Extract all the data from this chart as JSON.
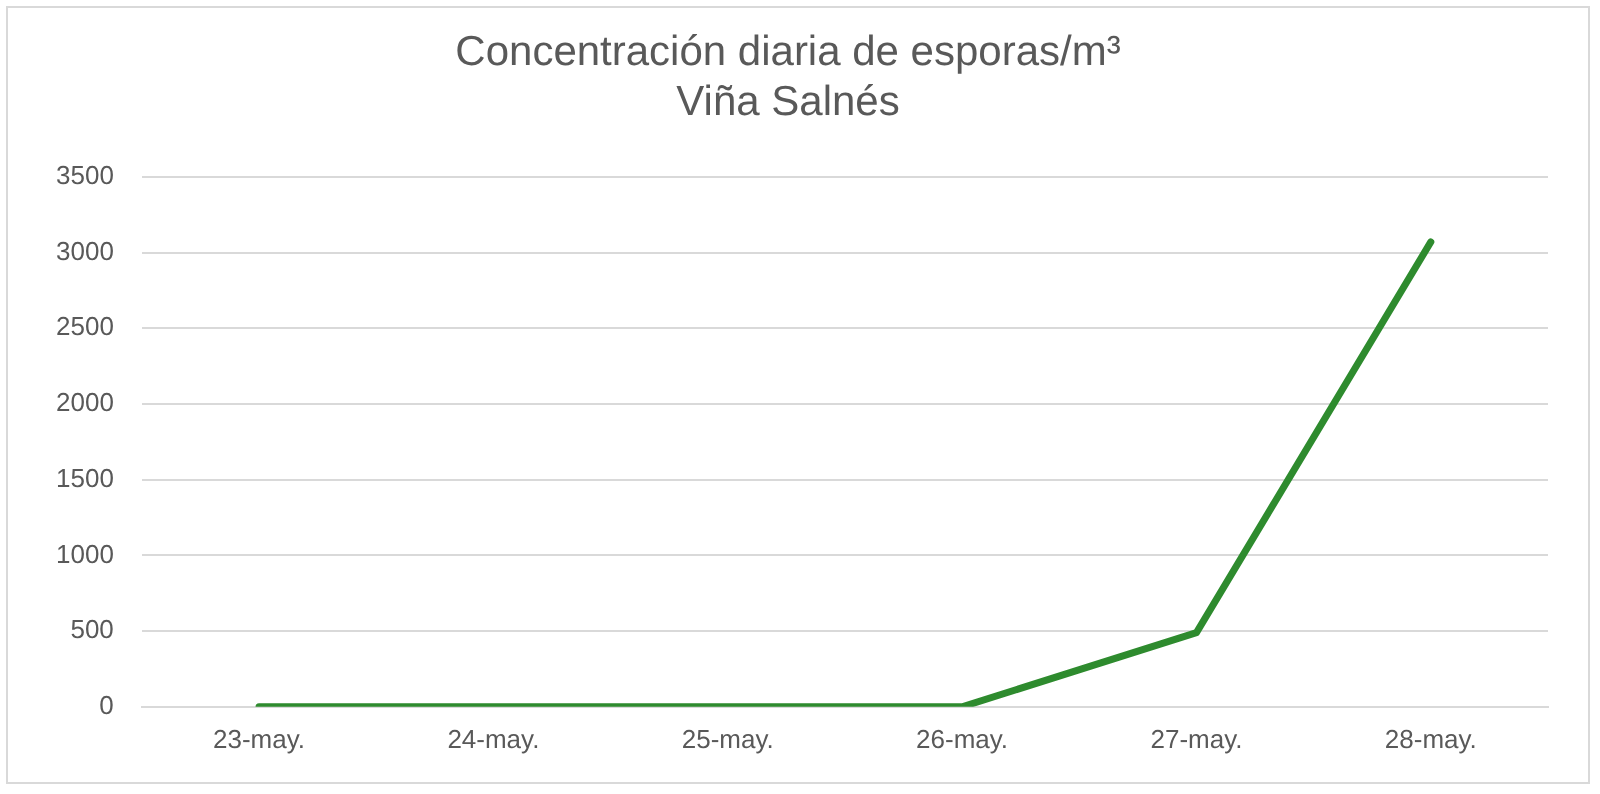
{
  "chart_data": {
    "type": "line",
    "title": "Concentración diaria de esporas/m³",
    "subtitle": "Viña Salnés",
    "categories": [
      "23-may.",
      "24-may.",
      "25-may.",
      "26-may.",
      "27-may.",
      "28-may."
    ],
    "series": [
      {
        "color": "#2e8b2e",
        "values": [
          0,
          0,
          0,
          0,
          490,
          3070
        ]
      }
    ],
    "ylim": [
      0,
      3500
    ],
    "yticks": [
      0,
      500,
      1000,
      1500,
      2000,
      2500,
      3000,
      3500
    ],
    "grid": "y",
    "legend": false,
    "marker": "none",
    "line_style": "solid"
  }
}
